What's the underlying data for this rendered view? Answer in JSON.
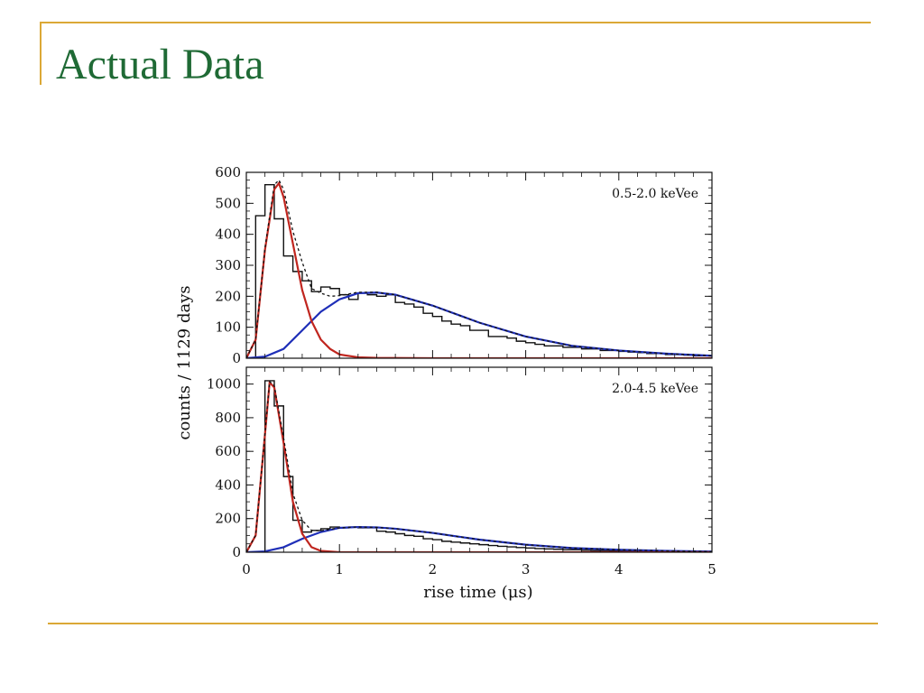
{
  "slide": {
    "title": "Actual Data"
  },
  "colors": {
    "accent": "#dba836",
    "title": "#1f6a35",
    "red": "#c0261f",
    "blue": "#1f2fb8"
  },
  "chart_data": {
    "type": "line",
    "xlabel": "rise time (μs)",
    "ylabel": "counts / 1129 days",
    "xlim": [
      0,
      5
    ],
    "xticks": [
      0,
      1,
      2,
      3,
      4,
      5
    ],
    "x_tick_labels": [
      "0",
      "1",
      "2",
      "3",
      "4",
      "5"
    ],
    "bin_width": 0.1,
    "panels": [
      {
        "annotation": "0.5-2.0 keVee",
        "ylim": [
          0,
          600
        ],
        "yticks": [
          0,
          100,
          200,
          300,
          400,
          500,
          600
        ],
        "y_tick_labels": [
          "0",
          "100",
          "200",
          "300",
          "400",
          "500",
          "600"
        ],
        "histogram": {
          "bin_edges_start": 0.1,
          "counts": [
            460,
            560,
            450,
            330,
            280,
            250,
            215,
            230,
            225,
            205,
            190,
            210,
            205,
            200,
            205,
            180,
            175,
            165,
            145,
            135,
            120,
            110,
            105,
            90,
            90,
            70,
            70,
            65,
            55,
            50,
            45,
            40,
            40,
            35,
            35,
            30,
            30,
            25,
            25,
            22,
            20,
            18,
            15,
            15,
            12,
            12,
            10,
            8,
            8
          ]
        },
        "fast_component": {
          "x": [
            0.0,
            0.1,
            0.2,
            0.3,
            0.35,
            0.4,
            0.5,
            0.6,
            0.7,
            0.8,
            0.9,
            1.0,
            1.2,
            1.4,
            2.0,
            5.0
          ],
          "y": [
            0,
            60,
            350,
            545,
            565,
            520,
            370,
            220,
            120,
            60,
            30,
            12,
            3,
            1,
            0,
            0
          ]
        },
        "slow_component": {
          "x": [
            0.0,
            0.2,
            0.4,
            0.6,
            0.8,
            1.0,
            1.2,
            1.4,
            1.6,
            2.0,
            2.5,
            3.0,
            3.5,
            4.0,
            4.5,
            5.0
          ],
          "y": [
            0,
            5,
            30,
            90,
            150,
            190,
            210,
            212,
            205,
            170,
            115,
            70,
            40,
            25,
            15,
            8
          ]
        },
        "total_fit": {
          "x": [
            0.0,
            0.1,
            0.2,
            0.3,
            0.35,
            0.4,
            0.5,
            0.6,
            0.7,
            0.8,
            0.9,
            1.0,
            1.2,
            1.4,
            1.6,
            2.0,
            2.5,
            3.0,
            3.5,
            4.0,
            4.5,
            5.0
          ],
          "y": [
            0,
            61,
            355,
            560,
            575,
            545,
            410,
            310,
            225,
            210,
            200,
            202,
            213,
            213,
            205,
            170,
            115,
            70,
            40,
            25,
            15,
            8
          ]
        }
      },
      {
        "annotation": "2.0-4.5 keVee",
        "ylim": [
          0,
          1100
        ],
        "yticks": [
          0,
          200,
          400,
          600,
          800,
          1000
        ],
        "y_tick_labels": [
          "0",
          "200",
          "400",
          "600",
          "800",
          "1000"
        ],
        "histogram": {
          "bin_edges_start": 0.2,
          "counts": [
            1020,
            870,
            450,
            190,
            120,
            130,
            140,
            150,
            145,
            150,
            145,
            145,
            125,
            120,
            110,
            100,
            95,
            80,
            75,
            65,
            60,
            55,
            50,
            45,
            40,
            35,
            32,
            28,
            25,
            22,
            20,
            18,
            15,
            15,
            12,
            10,
            10,
            8,
            8,
            6,
            5,
            5,
            4,
            3,
            3,
            2,
            2,
            2
          ]
        },
        "fast_component": {
          "x": [
            0.0,
            0.1,
            0.2,
            0.25,
            0.3,
            0.4,
            0.5,
            0.6,
            0.7,
            0.8,
            1.0,
            5.0
          ],
          "y": [
            0,
            100,
            700,
            1010,
            980,
            650,
            300,
            110,
            30,
            8,
            0,
            0
          ]
        },
        "slow_component": {
          "x": [
            0.0,
            0.2,
            0.4,
            0.6,
            0.8,
            1.0,
            1.2,
            1.4,
            1.6,
            2.0,
            2.5,
            3.0,
            3.5,
            4.0,
            4.5,
            5.0
          ],
          "y": [
            0,
            5,
            30,
            80,
            120,
            145,
            150,
            148,
            140,
            115,
            75,
            45,
            25,
            15,
            8,
            4
          ]
        },
        "total_fit": {
          "x": [
            0.0,
            0.1,
            0.2,
            0.25,
            0.3,
            0.4,
            0.5,
            0.6,
            0.7,
            0.8,
            1.0,
            1.2,
            1.4,
            1.6,
            2.0,
            2.5,
            3.0,
            3.5,
            4.0,
            4.5,
            5.0
          ],
          "y": [
            0,
            101,
            705,
            1015,
            990,
            680,
            350,
            190,
            130,
            128,
            145,
            150,
            148,
            140,
            115,
            75,
            45,
            25,
            15,
            8,
            4
          ]
        }
      }
    ]
  }
}
